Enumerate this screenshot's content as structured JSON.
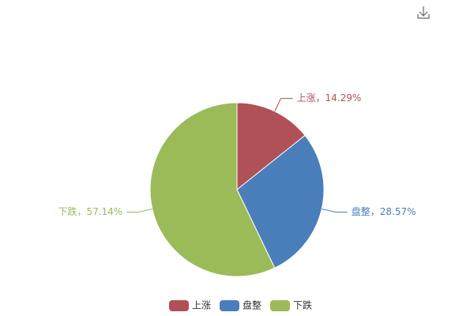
{
  "chart_data": {
    "type": "pie",
    "categories": [
      "上涨",
      "盘整",
      "下跌"
    ],
    "values": [
      14.29,
      28.57,
      57.14
    ],
    "value_labels": [
      "上涨，14.29%",
      "盘整，28.57%",
      "下跌，57.14%"
    ],
    "colors": [
      "#af5157",
      "#4a7ebb",
      "#9bbb59"
    ],
    "legend": "bottom"
  }
}
